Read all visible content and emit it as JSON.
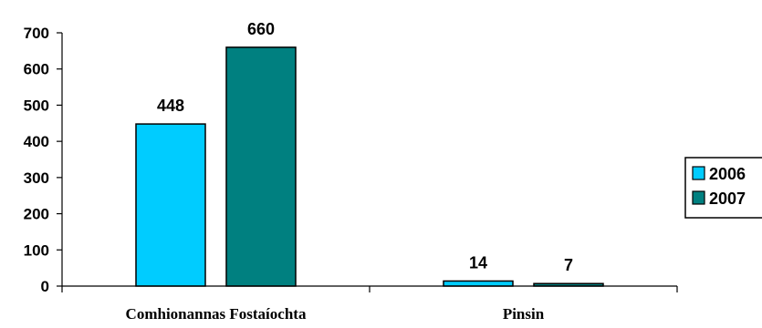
{
  "chart_data": {
    "type": "bar",
    "title": "",
    "xlabel": "",
    "ylabel": "",
    "categories": [
      "Comhionannas Fostaíochta",
      "Pinsin"
    ],
    "series": [
      {
        "name": "2006",
        "values": [
          448,
          14
        ],
        "color": "#00CCFF"
      },
      {
        "name": "2007",
        "values": [
          660,
          7
        ],
        "color": "#008080"
      }
    ],
    "ylim": [
      0,
      700
    ],
    "yticks": [
      0,
      100,
      200,
      300,
      400,
      500,
      600,
      700
    ],
    "grid": false,
    "legend": "right",
    "data_labels": true
  }
}
